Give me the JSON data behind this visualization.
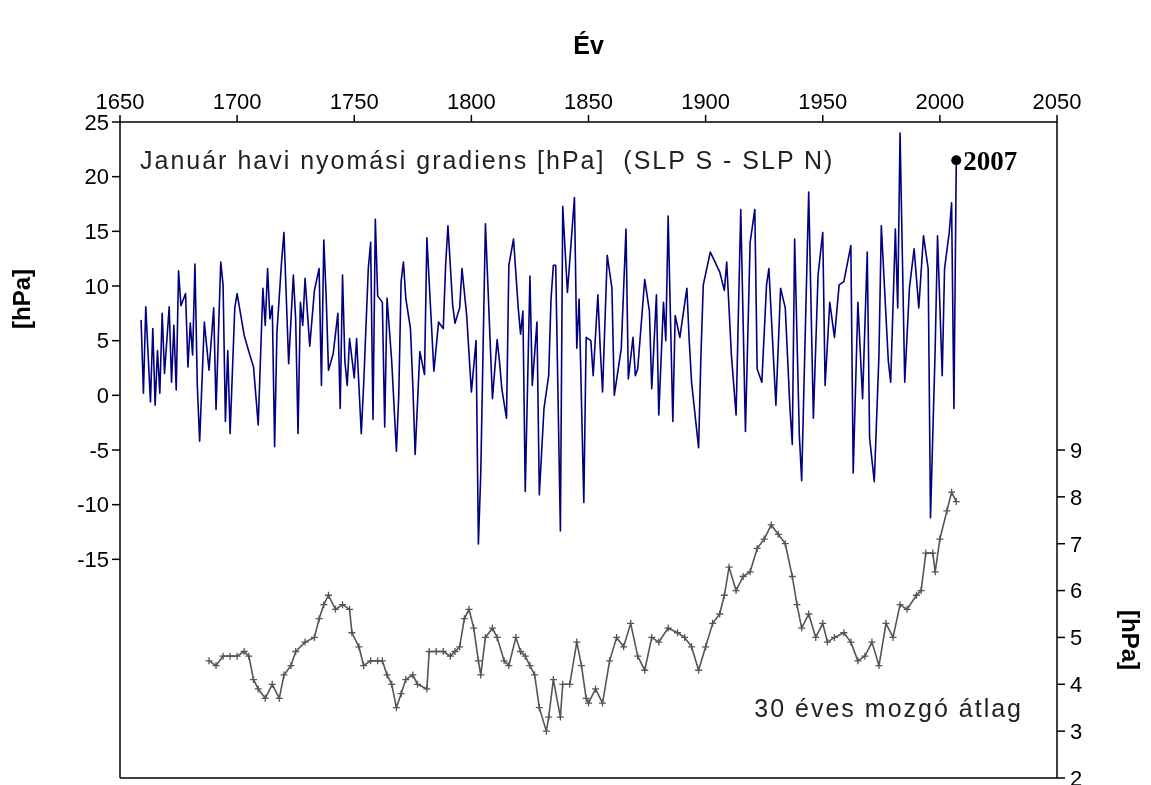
{
  "chart_data": {
    "type": "line",
    "xlabel": "Év",
    "ylabel": "[hPa]",
    "y2label": "[hPa]",
    "xlim": [
      1650,
      2050
    ],
    "xticks": [
      1650,
      1700,
      1750,
      1800,
      1850,
      1900,
      1950,
      2000,
      2050
    ],
    "ylim": [
      -35,
      25
    ],
    "yticks": [
      -15,
      -10,
      -5,
      0,
      5,
      10,
      15,
      20,
      25
    ],
    "y2lim": [
      2,
      16
    ],
    "y2ticks": [
      2,
      3,
      4,
      5,
      6,
      7,
      8,
      9
    ],
    "annotations": [
      {
        "text": "2007",
        "x": 2007,
        "y": 21.5
      }
    ],
    "series": [
      {
        "name": "Január havi nyomási gradiens [hPa]  (SLP S - SLP N)",
        "color": "#000080",
        "marker": "none",
        "x": [
          1659,
          1660,
          1661,
          1663,
          1664,
          1665,
          1666,
          1667,
          1668,
          1669,
          1671,
          1672,
          1673,
          1674,
          1675,
          1676,
          1678,
          1679,
          1680,
          1681,
          1682,
          1683,
          1684,
          1686,
          1688,
          1690,
          1691,
          1693,
          1694,
          1695,
          1696,
          1697,
          1699,
          1700,
          1703,
          1705,
          1707,
          1709,
          1711,
          1712,
          1713,
          1714,
          1715,
          1716,
          1717,
          1719,
          1720,
          1722,
          1724,
          1725,
          1726,
          1727,
          1728,
          1729,
          1731,
          1733,
          1735,
          1736,
          1737,
          1738,
          1739,
          1741,
          1743,
          1744,
          1745,
          1746,
          1747,
          1748,
          1750,
          1751,
          1753,
          1754,
          1756,
          1757,
          1758,
          1759,
          1760,
          1762,
          1763,
          1764,
          1766,
          1768,
          1769,
          1770,
          1771,
          1772,
          1774,
          1775,
          1776,
          1778,
          1780,
          1781,
          1784,
          1786,
          1788,
          1789,
          1790,
          1792,
          1793,
          1795,
          1796,
          1798,
          1800,
          1802,
          1803,
          1804,
          1805,
          1806,
          1808,
          1809,
          1811,
          1812,
          1813,
          1815,
          1816,
          1818,
          1820,
          1821,
          1822,
          1823,
          1825,
          1826,
          1828,
          1829,
          1831,
          1833,
          1834,
          1835,
          1836,
          1838,
          1839,
          1841,
          1844,
          1845,
          1846,
          1848,
          1849,
          1851,
          1852,
          1854,
          1855,
          1856,
          1858,
          1860,
          1861,
          1864,
          1866,
          1867,
          1869,
          1870,
          1871,
          1874,
          1876,
          1877,
          1879,
          1880,
          1882,
          1883,
          1884,
          1886,
          1887,
          1889,
          1892,
          1893,
          1894,
          1897,
          1898,
          1899,
          1902,
          1904,
          1906,
          1908,
          1909,
          1911,
          1913,
          1915,
          1917,
          1919,
          1921,
          1922,
          1924,
          1926,
          1927,
          1930,
          1932,
          1934,
          1936,
          1937,
          1938,
          1940,
          1941,
          1944,
          1946,
          1948,
          1950,
          1951,
          1953,
          1955,
          1957,
          1959,
          1962,
          1963,
          1965,
          1967,
          1969,
          1970,
          1972,
          1974,
          1975,
          1978,
          1979,
          1981,
          1982,
          1983,
          1985,
          1987,
          1989,
          1991,
          1993,
          1995,
          1996,
          1998,
          1999,
          2001,
          2002,
          2004,
          2005,
          2006,
          2007
        ],
        "values": [
          6.9,
          0.2,
          8.1,
          -0.6,
          6.1,
          -0.9,
          4.1,
          0.2,
          7.5,
          2.0,
          8.1,
          1.2,
          6.4,
          0.5,
          11.4,
          8.2,
          9.3,
          2.6,
          6.6,
          3.7,
          12.0,
          0.9,
          -4.2,
          6.7,
          2.3,
          8.0,
          -1.3,
          12.2,
          10.1,
          -2.4,
          4.1,
          -3.5,
          8.0,
          9.3,
          5.5,
          4.0,
          2.6,
          -2.7,
          9.8,
          6.4,
          11.6,
          7.0,
          8.2,
          -4.7,
          5.8,
          12.3,
          14.9,
          2.9,
          11.0,
          6.9,
          -3.5,
          8.5,
          6.4,
          10.7,
          4.5,
          9.6,
          11.6,
          0.9,
          14.2,
          9.1,
          2.3,
          3.8,
          7.5,
          -1.2,
          11.0,
          3.1,
          0.9,
          5.2,
          1.6,
          5.2,
          -3.5,
          0.9,
          11.6,
          14.0,
          -2.2,
          16.1,
          9.1,
          8.5,
          -2.9,
          8.9,
          3.1,
          -5.1,
          0.0,
          10.4,
          12.2,
          8.9,
          6.1,
          0.9,
          -5.4,
          4.0,
          1.9,
          14.4,
          2.2,
          6.7,
          6.1,
          11.9,
          15.5,
          8.3,
          6.6,
          8.0,
          11.6,
          7.3,
          0.3,
          5.0,
          -13.6,
          -7.2,
          4.3,
          15.7,
          5.0,
          -0.3,
          5.1,
          3.1,
          0.6,
          -2.1,
          11.9,
          14.3,
          8.0,
          5.6,
          7.7,
          -8.8,
          10.9,
          0.9,
          6.7,
          -9.1,
          -1.2,
          1.8,
          8.8,
          11.9,
          11.9,
          -12.4,
          17.3,
          9.4,
          18.1,
          4.3,
          8.8,
          -9.8,
          5.3,
          5.0,
          1.8,
          9.2,
          4.3,
          0.3,
          12.8,
          9.8,
          0.0,
          4.3,
          15.2,
          1.5,
          5.3,
          1.8,
          2.4,
          10.6,
          7.7,
          0.6,
          9.2,
          -1.8,
          8.5,
          5.0,
          16.4,
          -2.4,
          7.3,
          5.3,
          9.8,
          5.0,
          1.2,
          -4.8,
          3.7,
          10.1,
          13.1,
          12.2,
          11.3,
          9.6,
          12.2,
          3.7,
          -1.8,
          17.0,
          -3.3,
          14.0,
          17.0,
          2.4,
          1.2,
          10.1,
          11.6,
          -0.9,
          9.8,
          8.0,
          -1.2,
          -4.5,
          14.3,
          -3.6,
          -7.8,
          18.6,
          -2.1,
          11.0,
          14.9,
          0.9,
          8.5,
          5.3,
          10.1,
          10.4,
          13.7,
          -7.1,
          8.5,
          -0.3,
          13.1,
          -3.9,
          -7.9,
          3.7,
          15.5,
          3.1,
          1.2,
          15.2,
          8.0,
          24.0,
          1.2,
          9.8,
          13.4,
          8.0,
          14.6,
          11.6,
          -11.2,
          4.3,
          14.6,
          1.8,
          11.6,
          14.9,
          17.6,
          -1.2,
          21.5
        ]
      },
      {
        "name": "30 éves mozgó átlag",
        "color": "#555555",
        "marker": "cross",
        "axis": "y2",
        "x": [
          1688,
          1691,
          1694,
          1697,
          1700,
          1703,
          1705,
          1707,
          1709,
          1712,
          1715,
          1718,
          1720,
          1723,
          1725,
          1729,
          1733,
          1735,
          1737,
          1739,
          1742,
          1745,
          1748,
          1749,
          1752,
          1754,
          1757,
          1760,
          1762,
          1764,
          1766,
          1768,
          1770,
          1772,
          1775,
          1777,
          1781,
          1782,
          1785,
          1788,
          1791,
          1793,
          1795,
          1797,
          1799,
          1801,
          1803,
          1804,
          1806,
          1809,
          1811,
          1814,
          1816,
          1819,
          1821,
          1823,
          1825,
          1827,
          1829,
          1832,
          1833,
          1835,
          1838,
          1839,
          1842,
          1845,
          1847,
          1849,
          1850,
          1853,
          1856,
          1859,
          1862,
          1865,
          1868,
          1871,
          1874,
          1877,
          1880,
          1884,
          1888,
          1891,
          1894,
          1897,
          1900,
          1903,
          1906,
          1908,
          1910,
          1913,
          1916,
          1919,
          1922,
          1925,
          1928,
          1931,
          1934,
          1937,
          1939,
          1941,
          1944,
          1947,
          1950,
          1952,
          1955,
          1959,
          1962,
          1965,
          1968,
          1971,
          1974,
          1977,
          1980,
          1983,
          1986,
          1990,
          1992,
          1994,
          1997,
          1998,
          2000,
          2003,
          2005,
          2007
        ],
        "values": [
          4.5,
          4.4,
          4.6,
          4.6,
          4.6,
          4.7,
          4.6,
          4.1,
          3.9,
          3.7,
          4.0,
          3.7,
          4.2,
          4.4,
          4.7,
          4.9,
          5.0,
          5.4,
          5.7,
          5.9,
          5.6,
          5.7,
          5.6,
          5.1,
          4.8,
          4.4,
          4.5,
          4.5,
          4.5,
          4.2,
          4.0,
          3.5,
          3.8,
          4.1,
          4.2,
          4.0,
          3.9,
          4.7,
          4.7,
          4.7,
          4.6,
          4.7,
          4.8,
          5.4,
          5.6,
          5.2,
          4.5,
          4.2,
          5.0,
          5.2,
          5.0,
          4.5,
          4.4,
          5.0,
          4.7,
          4.6,
          4.4,
          4.2,
          3.5,
          3.0,
          3.3,
          4.1,
          3.3,
          4.0,
          4.0,
          4.9,
          4.4,
          3.7,
          3.6,
          3.9,
          3.6,
          4.5,
          5.0,
          4.8,
          5.3,
          4.6,
          4.3,
          5.0,
          4.9,
          5.2,
          5.1,
          5.0,
          4.8,
          4.3,
          4.8,
          5.3,
          5.5,
          5.9,
          6.5,
          6.0,
          6.3,
          6.4,
          6.9,
          7.1,
          7.4,
          7.2,
          7.0,
          6.3,
          5.7,
          5.2,
          5.5,
          5.0,
          5.3,
          4.9,
          5.0,
          5.1,
          4.9,
          4.5,
          4.6,
          4.9,
          4.4,
          5.3,
          5.0,
          5.7,
          5.6,
          5.9,
          6.0,
          6.8,
          6.8,
          6.4,
          7.1,
          7.7,
          8.1,
          7.9
        ]
      }
    ]
  }
}
